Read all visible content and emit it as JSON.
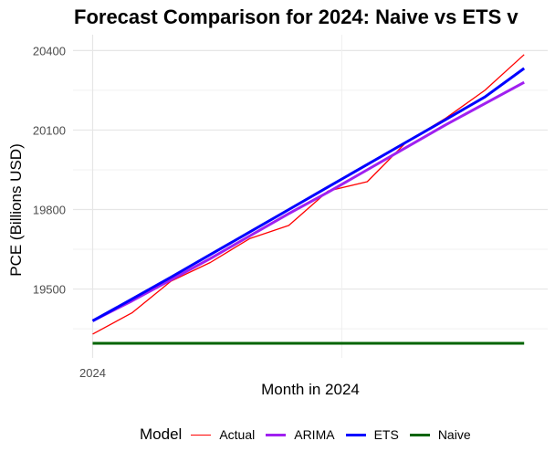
{
  "chart_data": {
    "type": "line",
    "title": "Forecast Comparison for 2024: Naive vs ETS v",
    "xlabel": "Month in 2024",
    "ylabel": "PCE (Billions USD)",
    "x": [
      1,
      2,
      3,
      4,
      5,
      6,
      7,
      8,
      9,
      10,
      11,
      12
    ],
    "xlim": [
      0.5,
      12.6
    ],
    "ylim": [
      19240,
      20460
    ],
    "x_ticks": [
      {
        "value": 1,
        "label": "2024"
      }
    ],
    "y_ticks": [
      19500,
      19800,
      20100,
      20400
    ],
    "grid": true,
    "legend": {
      "title": "Model",
      "position": "bottom"
    },
    "series": [
      {
        "name": "Actual",
        "color": "#ff0000",
        "width": 1.3,
        "values": [
          19330,
          19410,
          19530,
          19600,
          19690,
          19740,
          19870,
          19905,
          20055,
          20145,
          20250,
          20385
        ]
      },
      {
        "name": "ARIMA",
        "color": "#a020f0",
        "width": 3,
        "values": [
          19380,
          19455,
          19535,
          19615,
          19700,
          19785,
          19865,
          19950,
          20035,
          20120,
          20200,
          20280
        ]
      },
      {
        "name": "ETS",
        "color": "#0000ff",
        "width": 3,
        "values": [
          19380,
          19462,
          19545,
          19630,
          19715,
          19800,
          19885,
          19970,
          20055,
          20140,
          20225,
          20333
        ]
      },
      {
        "name": "Naive",
        "color": "#006400",
        "width": 3,
        "values": [
          19295,
          19295,
          19295,
          19295,
          19295,
          19295,
          19295,
          19295,
          19295,
          19295,
          19295,
          19295
        ]
      }
    ]
  }
}
